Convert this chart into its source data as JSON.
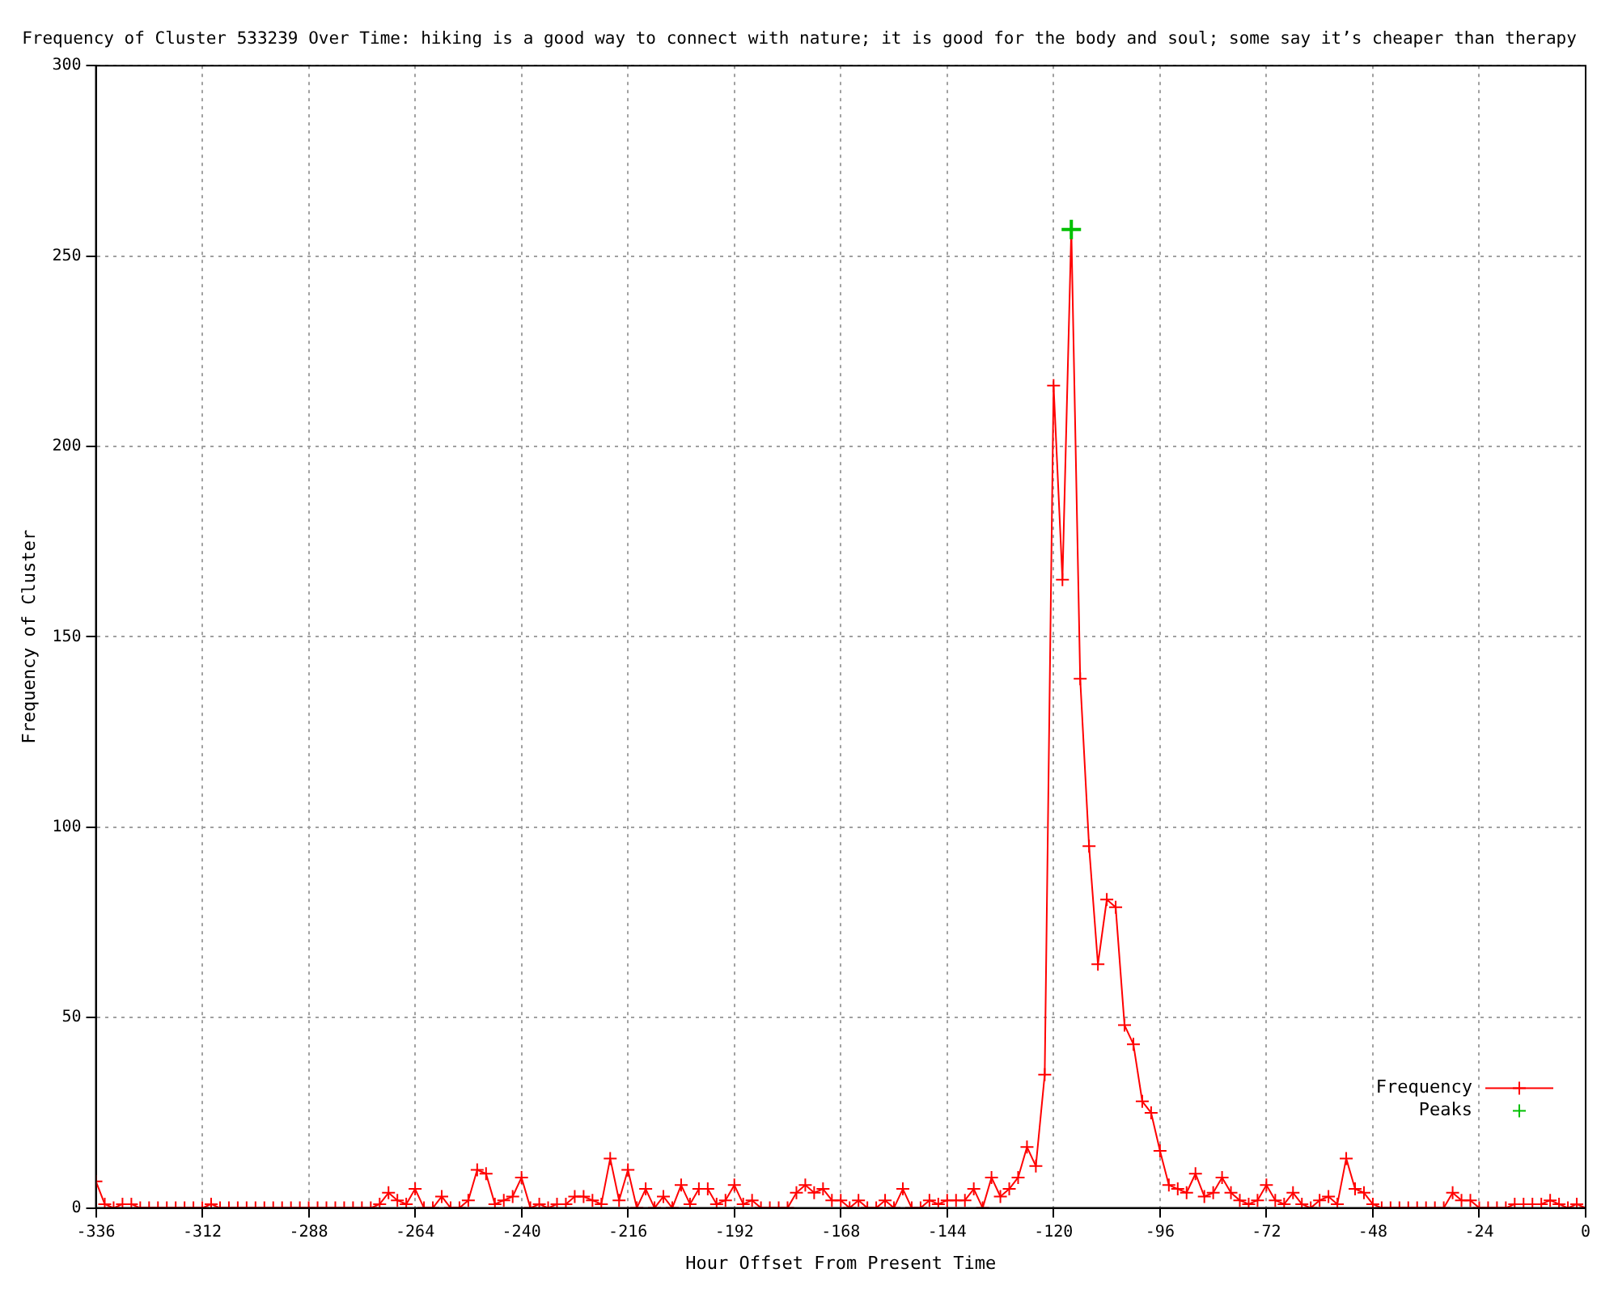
{
  "chart_data": {
    "type": "line",
    "title": "Frequency of Cluster 533239 Over Time: hiking is a good way to connect with nature; it is good for the body and soul; some say it’s cheaper than therapy",
    "xlabel": "Hour Offset From Present Time",
    "ylabel": "Frequency of Cluster",
    "x": [
      -336,
      -334,
      -332,
      -330,
      -328,
      -326,
      -324,
      -322,
      -320,
      -318,
      -316,
      -314,
      -312,
      -310,
      -308,
      -306,
      -304,
      -302,
      -300,
      -298,
      -296,
      -294,
      -292,
      -290,
      -288,
      -286,
      -284,
      -282,
      -280,
      -278,
      -276,
      -274,
      -272,
      -270,
      -268,
      -266,
      -264,
      -262,
      -260,
      -258,
      -256,
      -254,
      -252,
      -250,
      -248,
      -246,
      -244,
      -242,
      -240,
      -238,
      -236,
      -234,
      -232,
      -230,
      -228,
      -226,
      -224,
      -222,
      -220,
      -218,
      -216,
      -214,
      -212,
      -210,
      -208,
      -206,
      -204,
      -202,
      -200,
      -198,
      -196,
      -194,
      -192,
      -190,
      -188,
      -186,
      -184,
      -182,
      -180,
      -178,
      -176,
      -174,
      -172,
      -170,
      -168,
      -166,
      -164,
      -162,
      -160,
      -158,
      -156,
      -154,
      -152,
      -150,
      -148,
      -146,
      -144,
      -142,
      -140,
      -138,
      -136,
      -134,
      -132,
      -130,
      -128,
      -126,
      -124,
      -122,
      -120,
      -118,
      -116,
      -114,
      -112,
      -110,
      -108,
      -106,
      -104,
      -102,
      -100,
      -98,
      -96,
      -94,
      -92,
      -90,
      -88,
      -86,
      -84,
      -82,
      -80,
      -78,
      -76,
      -74,
      -72,
      -70,
      -68,
      -66,
      -64,
      -62,
      -60,
      -58,
      -56,
      -54,
      -52,
      -50,
      -48,
      -46,
      -44,
      -42,
      -40,
      -38,
      -36,
      -34,
      -32,
      -30,
      -28,
      -26,
      -24,
      -22,
      -20,
      -18,
      -16,
      -14,
      -12,
      -10,
      -8,
      -6,
      -4,
      -2,
      0
    ],
    "series": [
      {
        "name": "Frequency",
        "color": "#ff0000",
        "marker": "cross",
        "values": [
          7,
          1,
          0,
          1,
          1,
          0,
          0,
          0,
          0,
          0,
          0,
          0,
          0,
          1,
          0,
          0,
          0,
          0,
          0,
          0,
          0,
          0,
          0,
          0,
          0,
          0,
          0,
          0,
          0,
          0,
          0,
          0,
          1,
          4,
          2,
          1,
          5,
          0,
          0,
          3,
          0,
          0,
          2,
          10,
          9,
          1,
          2,
          3,
          8,
          0,
          1,
          0,
          1,
          1,
          3,
          3,
          2,
          1,
          13,
          2,
          10,
          0,
          5,
          0,
          3,
          0,
          6,
          1,
          5,
          5,
          1,
          2,
          6,
          1,
          2,
          0,
          0,
          0,
          0,
          4,
          6,
          4,
          5,
          2,
          2,
          0,
          2,
          0,
          0,
          2,
          0,
          5,
          0,
          0,
          2,
          1,
          2,
          2,
          2,
          5,
          0,
          8,
          3,
          5,
          8,
          16,
          11,
          35,
          216,
          165,
          257,
          139,
          95,
          64,
          81,
          79,
          48,
          43,
          28,
          25,
          15,
          6,
          5,
          4,
          9,
          3,
          4,
          8,
          4,
          2,
          1,
          2,
          6,
          2,
          1,
          4,
          1,
          0,
          2,
          3,
          1,
          13,
          5,
          4,
          1,
          0,
          0,
          0,
          0,
          0,
          0,
          0,
          0,
          4,
          2,
          2,
          0,
          0,
          0,
          0,
          1,
          1,
          1,
          1,
          2,
          1,
          0,
          1,
          0
        ]
      },
      {
        "name": "Peaks",
        "type": "scatter",
        "color": "#00c000",
        "marker": "cross",
        "x": [
          -116
        ],
        "values": [
          257
        ]
      }
    ],
    "xlim": [
      -336,
      0
    ],
    "xticks": [
      -336,
      -312,
      -288,
      -264,
      -240,
      -216,
      -192,
      -168,
      -144,
      -120,
      -96,
      -72,
      -48,
      -24,
      0
    ],
    "ylim": [
      0,
      300
    ],
    "yticks": [
      0,
      50,
      100,
      150,
      200,
      250,
      300
    ],
    "grid": true,
    "legend": "bottom right",
    "line_style": "solid"
  }
}
